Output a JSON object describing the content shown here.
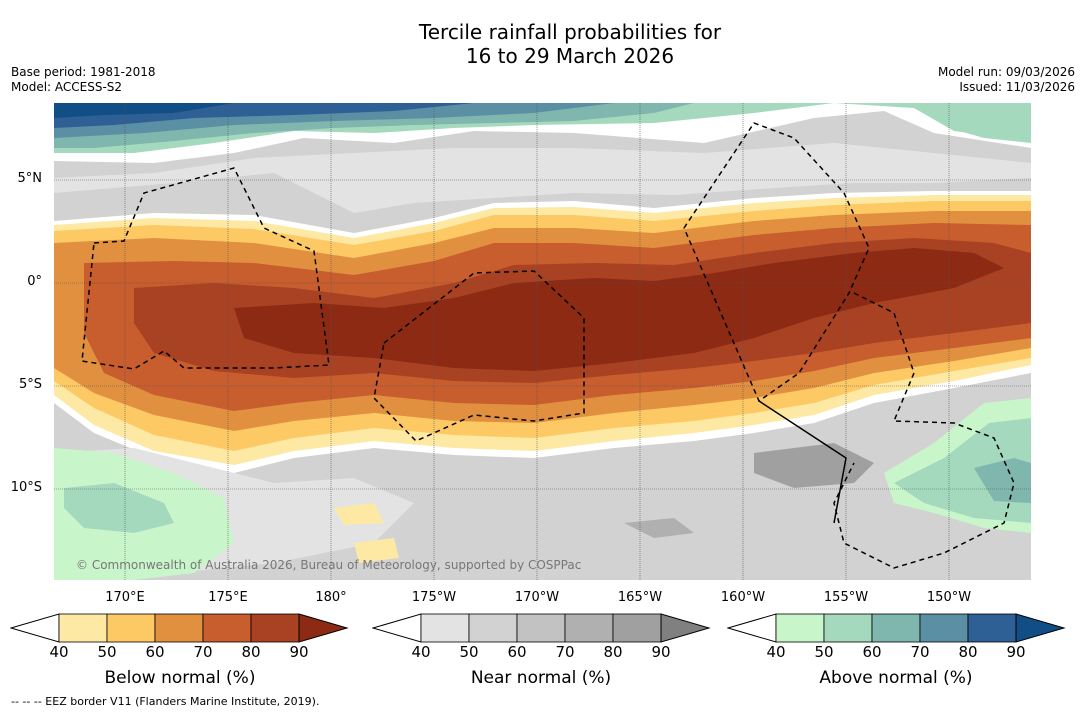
{
  "title_line1": "Tercile rainfall probabilities for",
  "title_line2": "16 to 29 March 2026",
  "base_period": "Base period: 1981-2018",
  "model": "Model: ACCESS-S2",
  "model_run": "Model run: 09/03/2026",
  "issued": "Issued: 11/03/2026",
  "map": {
    "lat_labels": [
      "5°N",
      "0°",
      "5°S",
      "10°S"
    ],
    "lon_labels": [
      "170°E",
      "175°E",
      "180°",
      "175°W",
      "170°W",
      "165°W",
      "160°W",
      "155°W",
      "150°W"
    ],
    "copyright": "© Commonwealth of Australia 2026, Bureau of Meteorology, supported by COSPPac"
  },
  "colorbars": [
    {
      "label": "Below normal (%)",
      "ticks": [
        "40",
        "50",
        "60",
        "70",
        "80",
        "90"
      ],
      "colors": [
        "#ffffff",
        "#fde9a3",
        "#fdc965",
        "#e19040",
        "#c85d2e",
        "#a94223",
        "#8c2a14"
      ]
    },
    {
      "label": "Near normal (%)",
      "ticks": [
        "40",
        "50",
        "60",
        "70",
        "80",
        "90"
      ],
      "colors": [
        "#ffffff",
        "#e3e3e3",
        "#d2d2d2",
        "#c2c2c2",
        "#b0b0b0",
        "#a0a0a0",
        "#808080"
      ]
    },
    {
      "label": "Above normal (%)",
      "ticks": [
        "40",
        "50",
        "60",
        "70",
        "80",
        "90"
      ],
      "colors": [
        "#ffffff",
        "#c9f5cb",
        "#a5d9bd",
        "#7fb6ad",
        "#5b8fa3",
        "#2e5f95",
        "#124e86"
      ]
    }
  ],
  "footnote": "-- -- -- EEZ border V11 (Flanders Marine Institute, 2019)."
}
